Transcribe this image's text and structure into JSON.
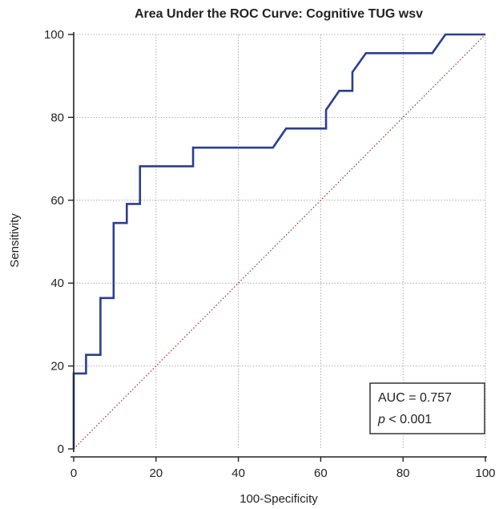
{
  "chart_data": {
    "type": "line",
    "title": "Area Under the ROC Curve: Cognitive TUG wsv",
    "xlabel": "100-Specificity",
    "ylabel": "Sensitivity",
    "xlim": [
      0,
      100
    ],
    "ylim": [
      0,
      100
    ],
    "x_ticks": [
      "0",
      "20",
      "40",
      "60",
      "80",
      "100"
    ],
    "y_ticks": [
      "0",
      "20",
      "40",
      "60",
      "80",
      "100"
    ],
    "grid": true,
    "series": [
      {
        "color": "#2b3f8f",
        "points": [
          [
            0,
            0
          ],
          [
            0,
            18.2
          ],
          [
            3,
            18.2
          ],
          [
            3,
            22.7
          ],
          [
            6.5,
            22.7
          ],
          [
            6.5,
            36.4
          ],
          [
            9.7,
            36.4
          ],
          [
            9.7,
            54.5
          ],
          [
            12.9,
            54.5
          ],
          [
            12.9,
            59.1
          ],
          [
            16.1,
            59.1
          ],
          [
            16.1,
            68.2
          ],
          [
            29,
            68.2
          ],
          [
            29,
            72.7
          ],
          [
            48.4,
            72.7
          ],
          [
            51.6,
            77.3
          ],
          [
            61.3,
            77.3
          ],
          [
            61.3,
            81.8
          ],
          [
            64.5,
            86.4
          ],
          [
            67.7,
            86.4
          ],
          [
            67.7,
            90.9
          ],
          [
            71,
            95.5
          ],
          [
            87.1,
            95.5
          ],
          [
            90.3,
            100
          ],
          [
            100,
            100
          ]
        ]
      }
    ],
    "reference_line": {
      "from": [
        0,
        0
      ],
      "to": [
        100,
        100
      ],
      "color": "#a0282d",
      "style": "dotted"
    },
    "annotation": {
      "auc_text": "AUC = 0.757",
      "p_letter": "p",
      "p_rest": " < 0.001",
      "placement": "bottom-right"
    }
  }
}
